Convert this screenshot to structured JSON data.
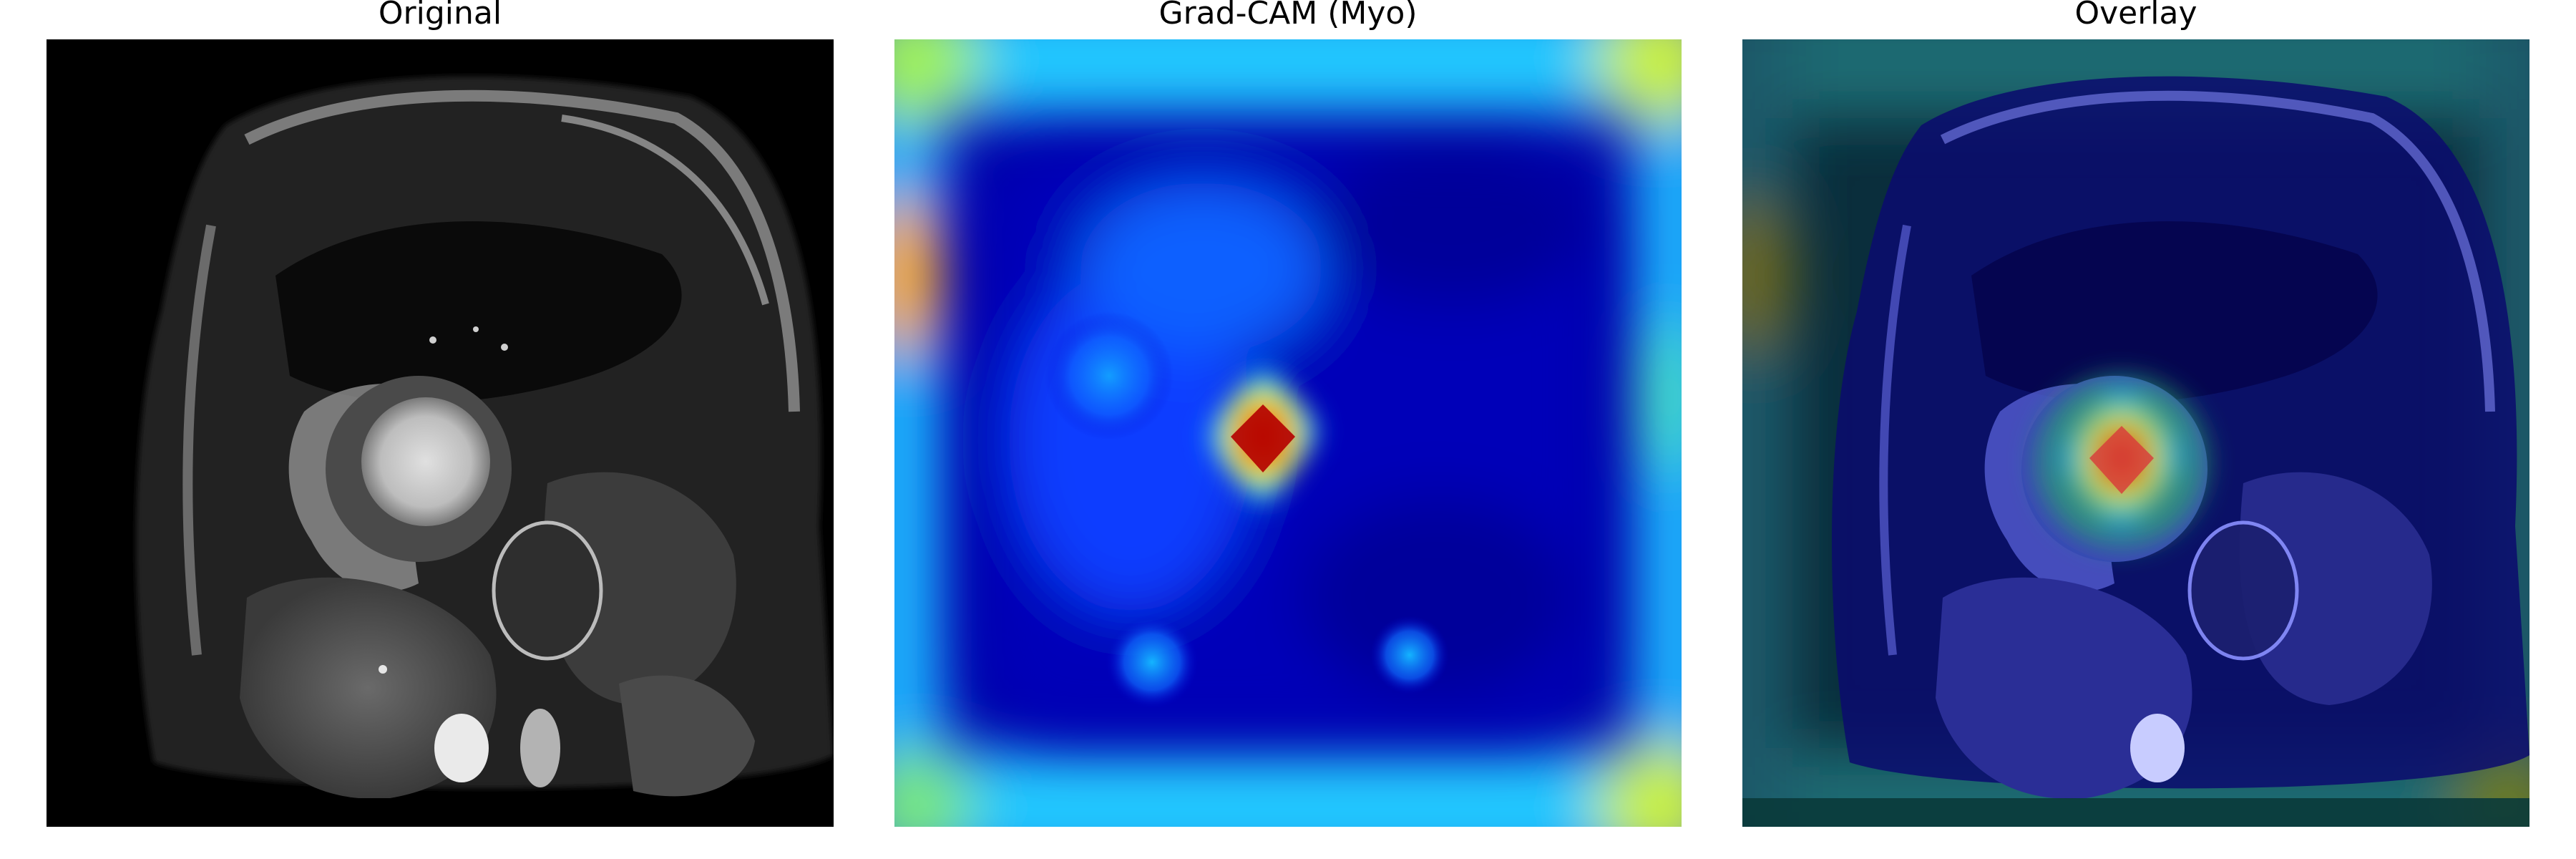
{
  "panels": [
    {
      "title": "Original",
      "content": "cardiac-mri-short-axis-grayscale"
    },
    {
      "title": "Grad-CAM (Myo)",
      "content": "jet-colormap-heatmap"
    },
    {
      "title": "Overlay",
      "content": "heatmap-over-mri"
    }
  ],
  "colors": {
    "background": "#ffffff",
    "mri_background": "#000000",
    "heatmap_low": "#00008c",
    "heatmap_mid": "#00c8ff",
    "heatmap_high": "#c80000"
  }
}
